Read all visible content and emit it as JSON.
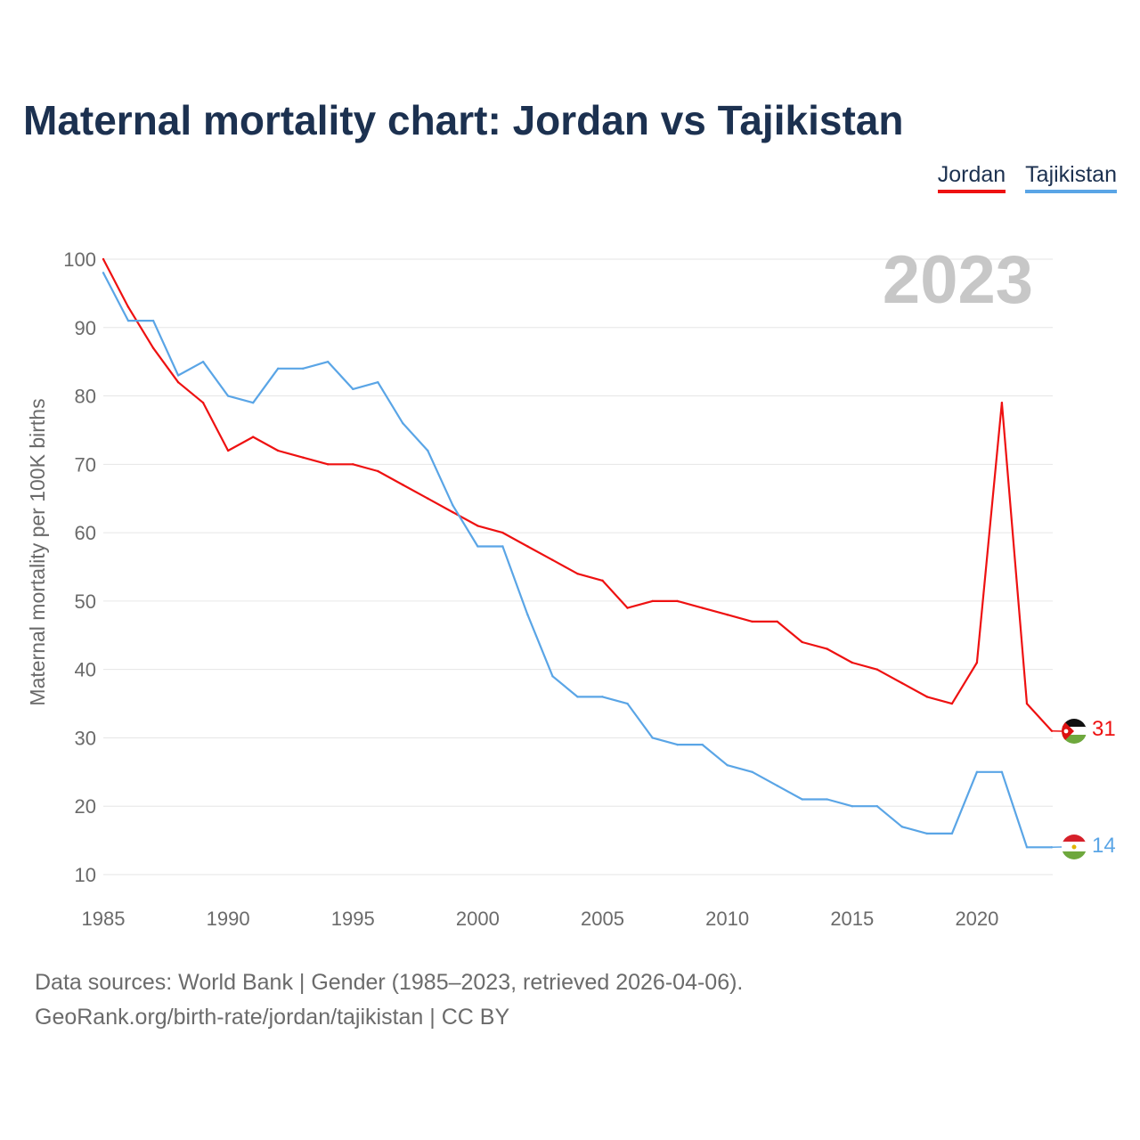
{
  "chart_data": {
    "type": "line",
    "title": "Maternal mortality chart: Jordan vs Tajikistan",
    "ylabel": "Maternal mortality per 100K births",
    "xlabel": "",
    "year_label": "2023",
    "xlim": [
      1985,
      2023
    ],
    "ylim": [
      10,
      100
    ],
    "x_ticks": [
      1985,
      1990,
      1995,
      2000,
      2005,
      2010,
      2015,
      2020
    ],
    "y_ticks": [
      10,
      20,
      30,
      40,
      50,
      60,
      70,
      80,
      90,
      100
    ],
    "grid": true,
    "legend_position": "top-right",
    "x": [
      1985,
      1986,
      1987,
      1988,
      1989,
      1990,
      1991,
      1992,
      1993,
      1994,
      1995,
      1996,
      1997,
      1998,
      1999,
      2000,
      2001,
      2002,
      2003,
      2004,
      2005,
      2006,
      2007,
      2008,
      2009,
      2010,
      2011,
      2012,
      2013,
      2014,
      2015,
      2016,
      2017,
      2018,
      2019,
      2020,
      2021,
      2022,
      2023
    ],
    "series": [
      {
        "name": "Jordan",
        "color": "#ee1111",
        "end_value": "31",
        "values": [
          100,
          93,
          87,
          82,
          79,
          72,
          74,
          72,
          71,
          70,
          70,
          69,
          67,
          65,
          63,
          61,
          60,
          58,
          56,
          54,
          53,
          49,
          50,
          50,
          49,
          48,
          47,
          47,
          44,
          43,
          41,
          40,
          38,
          36,
          35,
          41,
          79,
          35,
          31
        ]
      },
      {
        "name": "Tajikistan",
        "color": "#5aa5e6",
        "end_value": "14",
        "values": [
          98,
          91,
          91,
          83,
          85,
          80,
          79,
          84,
          84,
          85,
          81,
          82,
          76,
          72,
          64,
          58,
          58,
          48,
          39,
          36,
          36,
          35,
          30,
          29,
          29,
          26,
          25,
          23,
          21,
          21,
          20,
          20,
          17,
          16,
          16,
          25,
          25,
          14,
          14
        ]
      }
    ]
  },
  "footer": {
    "line1": "Data sources: World Bank | Gender (1985–2023, retrieved 2026-04-06).",
    "line2": "GeoRank.org/birth-rate/jordan/tajikistan | CC BY"
  },
  "icons": {
    "jordan": "jordan-flag-icon",
    "tajikistan": "tajikistan-flag-icon"
  }
}
